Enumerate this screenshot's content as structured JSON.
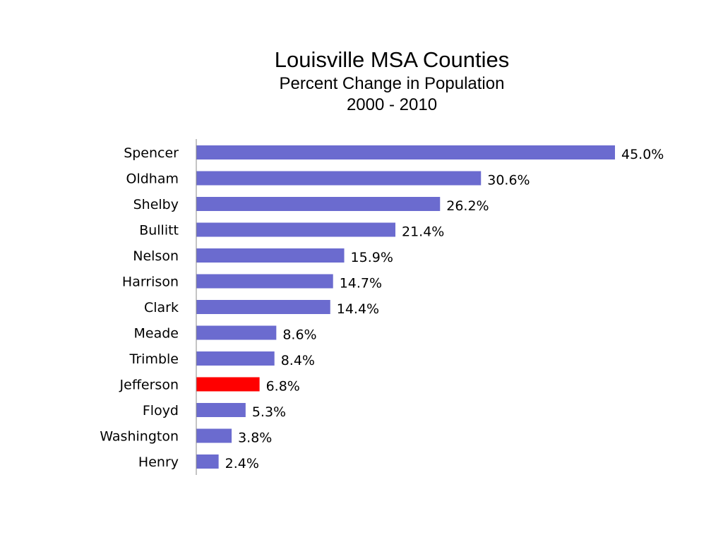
{
  "chart_data": {
    "type": "bar",
    "orientation": "horizontal",
    "title": "Louisville MSA Counties",
    "subtitle": "Percent Change in Population",
    "subtitle2": "2000 - 2010",
    "categories": [
      "Spencer",
      "Oldham",
      "Shelby",
      "Bullitt",
      "Nelson",
      "Harrison",
      "Clark",
      "Meade",
      "Trimble",
      "Jefferson",
      "Floyd",
      "Washington",
      "Henry"
    ],
    "values": [
      45.0,
      30.6,
      26.2,
      21.4,
      15.9,
      14.7,
      14.4,
      8.6,
      8.4,
      6.8,
      5.3,
      3.8,
      2.4
    ],
    "value_labels": [
      "45.0%",
      "30.6%",
      "26.2%",
      "21.4%",
      "15.9%",
      "14.7%",
      "14.4%",
      "8.6%",
      "8.4%",
      "6.8%",
      "5.3%",
      "3.8%",
      "2.4%"
    ],
    "highlight": "Jefferson",
    "xlim": [
      0,
      45
    ],
    "grid": false,
    "legend": "none",
    "colors": {
      "bar": "#6b6bcf",
      "highlight": "#ff0000",
      "axis": "#888888"
    }
  }
}
